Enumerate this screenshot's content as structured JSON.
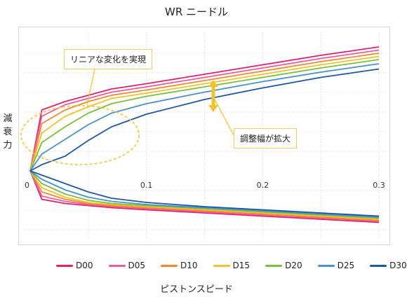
{
  "chart_data": {
    "type": "line",
    "title": "WR ニードル",
    "xlabel": "ピストンスピード",
    "ylabel": "減衰力",
    "xlim": [
      0,
      0.3
    ],
    "x_ticks": [
      "0",
      "0.1",
      "0.2",
      "0.3"
    ],
    "grid": true,
    "legend": "bottom",
    "annotations": {
      "linear": "リニアな変化を実現",
      "range": "調整幅が拡大"
    },
    "x": [
      0,
      0.01,
      0.03,
      0.05,
      0.07,
      0.1,
      0.15,
      0.2,
      0.25,
      0.3
    ],
    "series": [
      {
        "name": "D00",
        "color": "#e0226a",
        "upper": [
          0,
          0.58,
          0.66,
          0.72,
          0.78,
          0.83,
          0.92,
          1.01,
          1.1,
          1.18
        ],
        "lower": [
          0,
          -0.27,
          -0.31,
          -0.33,
          -0.35,
          -0.37,
          -0.4,
          -0.43,
          -0.46,
          -0.49
        ]
      },
      {
        "name": "D05",
        "color": "#ef5aa3",
        "upper": [
          0,
          0.52,
          0.63,
          0.69,
          0.75,
          0.8,
          0.89,
          0.98,
          1.07,
          1.15
        ],
        "lower": [
          0,
          -0.24,
          -0.29,
          -0.32,
          -0.34,
          -0.36,
          -0.39,
          -0.42,
          -0.45,
          -0.48
        ]
      },
      {
        "name": "D10",
        "color": "#f08a2a",
        "upper": [
          0,
          0.45,
          0.58,
          0.66,
          0.72,
          0.77,
          0.86,
          0.95,
          1.04,
          1.12
        ],
        "lower": [
          0,
          -0.2,
          -0.27,
          -0.31,
          -0.33,
          -0.35,
          -0.38,
          -0.41,
          -0.44,
          -0.47
        ]
      },
      {
        "name": "D15",
        "color": "#f2c12e",
        "upper": [
          0,
          0.36,
          0.52,
          0.61,
          0.69,
          0.74,
          0.83,
          0.92,
          1.01,
          1.09
        ],
        "lower": [
          0,
          -0.16,
          -0.25,
          -0.3,
          -0.32,
          -0.34,
          -0.37,
          -0.4,
          -0.43,
          -0.46
        ]
      },
      {
        "name": "D20",
        "color": "#7cbf3a",
        "upper": [
          0,
          0.27,
          0.42,
          0.55,
          0.64,
          0.71,
          0.8,
          0.89,
          0.98,
          1.06
        ],
        "lower": [
          0,
          -0.12,
          -0.22,
          -0.28,
          -0.31,
          -0.33,
          -0.36,
          -0.39,
          -0.42,
          -0.45
        ]
      },
      {
        "name": "D25",
        "color": "#4a8fd0",
        "upper": [
          0,
          0.16,
          0.3,
          0.44,
          0.55,
          0.64,
          0.75,
          0.85,
          0.94,
          1.02
        ],
        "lower": [
          0,
          -0.08,
          -0.18,
          -0.25,
          -0.29,
          -0.32,
          -0.35,
          -0.38,
          -0.41,
          -0.44
        ]
      },
      {
        "name": "D30",
        "color": "#1d58a8",
        "upper": [
          0,
          0.06,
          0.14,
          0.29,
          0.42,
          0.54,
          0.68,
          0.79,
          0.89,
          0.97
        ],
        "lower": [
          0,
          -0.04,
          -0.12,
          -0.2,
          -0.26,
          -0.3,
          -0.34,
          -0.37,
          -0.4,
          -0.43
        ]
      }
    ]
  }
}
